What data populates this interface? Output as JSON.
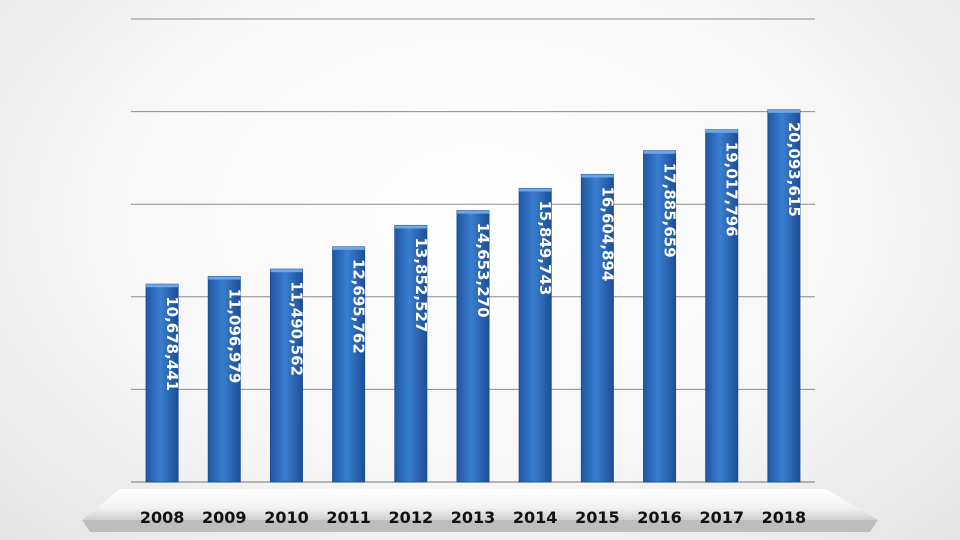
{
  "chart_data": {
    "type": "bar",
    "categories": [
      "2008",
      "2009",
      "2010",
      "2011",
      "2012",
      "2013",
      "2014",
      "2015",
      "2016",
      "2017",
      "2018"
    ],
    "values": [
      10678441,
      11096979,
      11490562,
      12695762,
      13852527,
      14653270,
      15849743,
      16604894,
      17885659,
      19017796,
      20093615
    ],
    "labels": [
      "10,678,441",
      "11,096,979",
      "11,490,562",
      "12,695,762",
      "13,852,527",
      "14,653,270",
      "15,849,743",
      "16,604,894",
      "17,885,659",
      "19,017,796",
      "20,093,615"
    ],
    "title": "",
    "xlabel": "",
    "ylabel": "",
    "ylim": [
      0,
      25000000
    ],
    "y_gridline_step": 5000000,
    "y_tick_labels_shown": false,
    "grid": true,
    "legend": "none",
    "colors": {
      "bar": "#2f6fc0",
      "bar_edge": "#1b4f93",
      "gridline": "#8c8c8c",
      "label": "#ffffff",
      "tick_label": "#111111"
    }
  }
}
